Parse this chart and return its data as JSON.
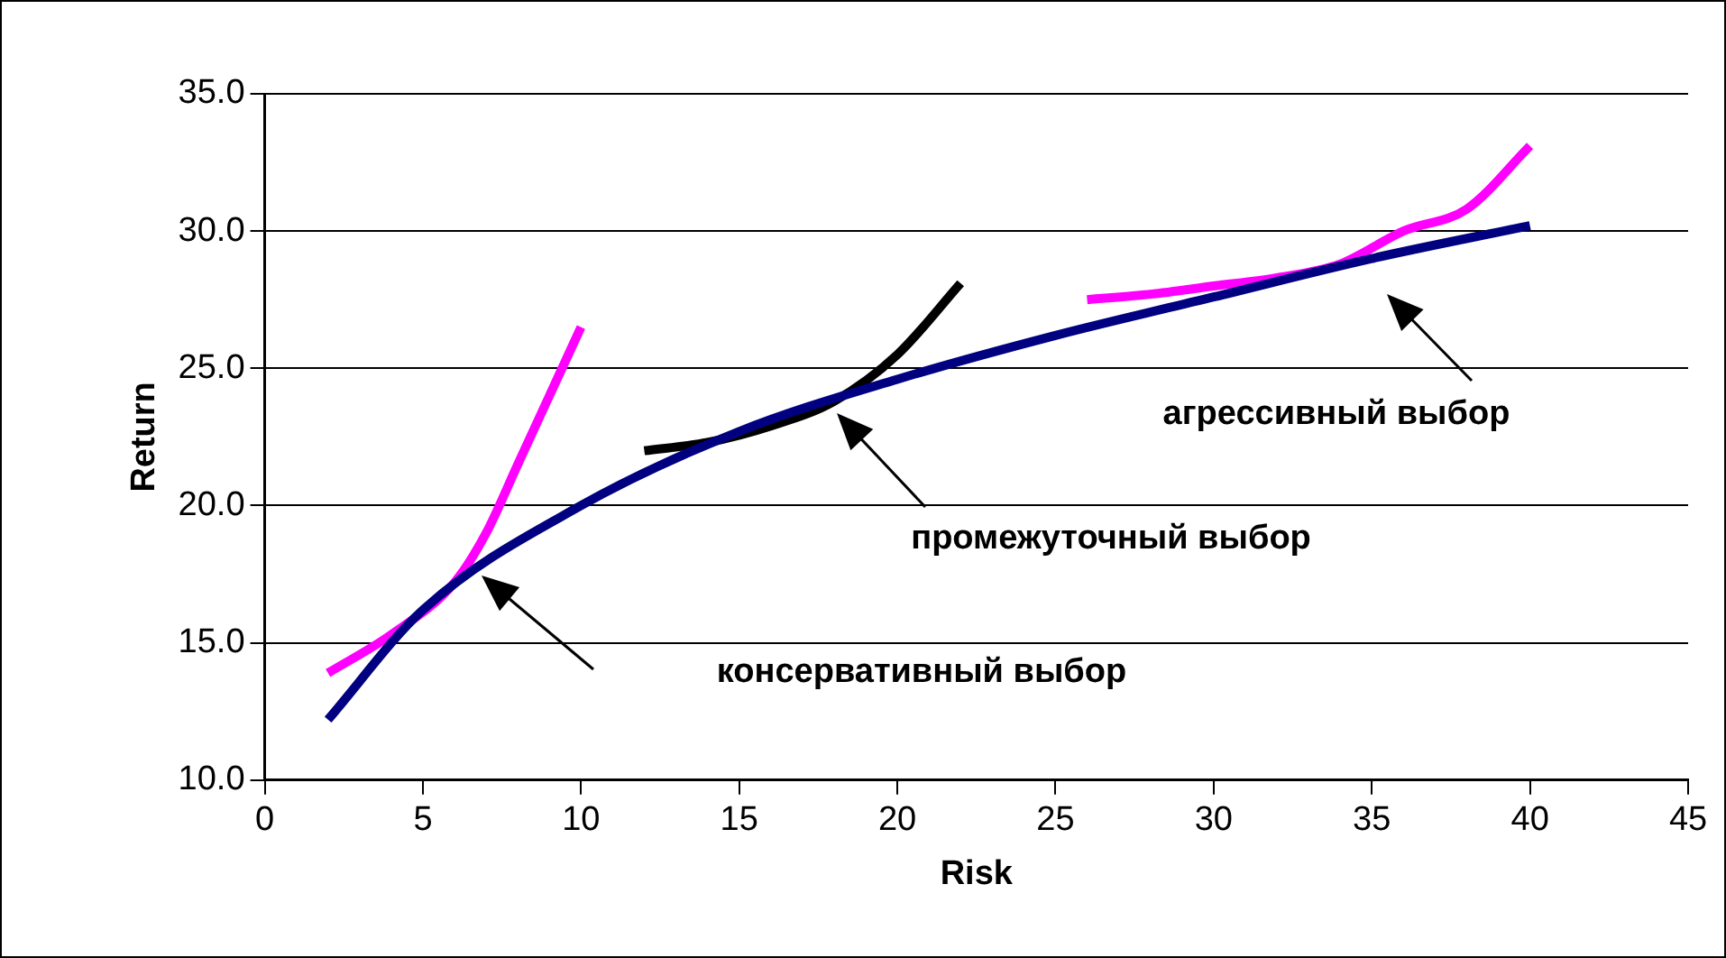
{
  "chart_data": {
    "type": "line",
    "xlabel": "Risk",
    "ylabel": "Return",
    "xlim": [
      0,
      45
    ],
    "xticks": [
      0,
      5,
      10,
      15,
      20,
      25,
      30,
      35,
      40,
      45
    ],
    "ylim": [
      10,
      35
    ],
    "yticks": [
      {
        "value": 10,
        "label": "10.0"
      },
      {
        "value": 15,
        "label": "15.0"
      },
      {
        "value": 20,
        "label": "20.0"
      },
      {
        "value": 25,
        "label": "25.0"
      },
      {
        "value": 30,
        "label": "30.0"
      },
      {
        "value": 35,
        "label": "35.0"
      }
    ],
    "grid": "y",
    "legend": false,
    "marker": "none",
    "line_style": "solid",
    "series": [
      {
        "color": "#000080",
        "x": [
          2,
          5,
          10,
          15,
          20,
          25,
          30,
          35,
          40
        ],
        "values": [
          12.2,
          16.2,
          20.0,
          22.7,
          24.6,
          26.2,
          27.6,
          29.0,
          30.2
        ]
      },
      {
        "color": "#ff00ff",
        "x": [
          2,
          4,
          6,
          7,
          8,
          9,
          10
        ],
        "values": [
          13.9,
          15.3,
          17.2,
          19.0,
          21.5,
          24.0,
          26.5
        ]
      },
      {
        "color": "#000000",
        "x": [
          12,
          14,
          16,
          18,
          20,
          22
        ],
        "values": [
          22.0,
          22.3,
          22.9,
          23.8,
          25.5,
          28.1
        ]
      },
      {
        "color": "#ff00ff",
        "x": [
          26,
          28,
          30,
          32,
          34,
          36,
          38,
          40
        ],
        "values": [
          27.5,
          27.7,
          28.0,
          28.3,
          28.8,
          30.0,
          30.8,
          33.1
        ]
      }
    ],
    "annotations": [
      "консервативный выбор",
      "промежуточный выбор",
      "агрессивный выбор"
    ]
  }
}
